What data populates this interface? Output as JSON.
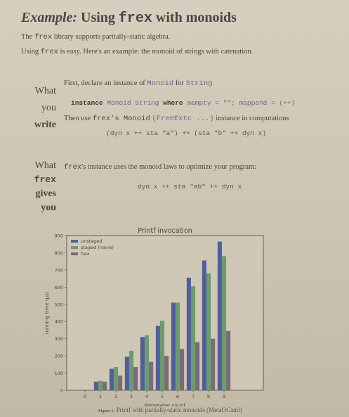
{
  "title": {
    "italic": "Example:",
    "word": "Using",
    "mono": "frex",
    "rest": "with monoids"
  },
  "intro": {
    "line1_mono": "frex",
    "line1_pre": "The",
    "line1_post": "library supports partially-static algebra.",
    "line2_pre": "Using",
    "line2_mono": "frex",
    "line2_post": "is easy. Here's an example: the monoid of strings with catenation."
  },
  "section1": {
    "side": [
      "What",
      "you",
      "write"
    ],
    "declare_pre": "First, declare an instance of",
    "declare_mono1": "Monoid",
    "declare_mid": "for",
    "declare_mono2": "String",
    "code1_kw1": "instance",
    "code1_a": "Monoid String",
    "code1_kw2": "where",
    "code1_b": "mempty = \"\"; mappend = (++)",
    "then_pre": "Then use",
    "then_mono1": "frex's Monoid",
    "then_mono2": "(FreeExtc ...)",
    "then_post": "instance in computations",
    "code2": "(dyn x ++ sta \"a\") ++ (sta \"b\" ++ dyn x)"
  },
  "section2": {
    "side": [
      "What",
      "frex",
      "gives",
      "you"
    ],
    "text_mono": "frex",
    "text_post": "'s instance uses the monoid laws to optimize your program:",
    "code": "dyn x ++ sta \"ab\" ++ dyn x"
  },
  "chart_data": {
    "type": "bar",
    "title": "Printf invocation",
    "xlabel": "Parameter count",
    "ylabel": "running time (µs)",
    "categories": [
      "0",
      "1",
      "2",
      "3",
      "4",
      "5",
      "6",
      "7",
      "8",
      "9"
    ],
    "ylim": [
      0,
      900
    ],
    "yticks": [
      0,
      100,
      200,
      300,
      400,
      500,
      600,
      700,
      800,
      900
    ],
    "legend_position": "top-left",
    "series": [
      {
        "name": "unstaged",
        "color": "#4f5f9a",
        "values": [
          0,
          50,
          125,
          195,
          310,
          375,
          510,
          655,
          755,
          865
        ]
      },
      {
        "name": "staged (naive)",
        "color": "#6d9c6a",
        "values": [
          0,
          55,
          135,
          230,
          320,
          405,
          510,
          605,
          680,
          780
        ]
      },
      {
        "name": "frex",
        "color": "#7c6a7a",
        "values": [
          0,
          50,
          85,
          135,
          165,
          200,
          240,
          280,
          300,
          345
        ]
      }
    ]
  },
  "caption": {
    "label": "Figure 1:",
    "text": "Printf with partially-static monoids (MetaOCaml)"
  }
}
